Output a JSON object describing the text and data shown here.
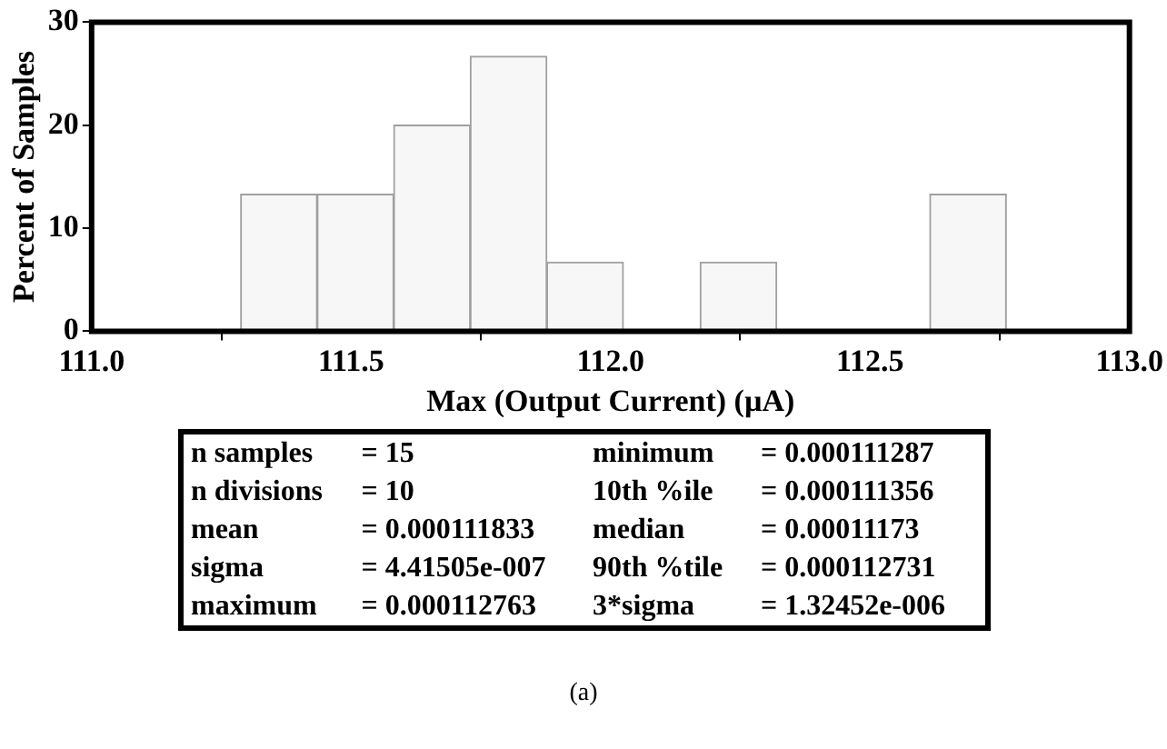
{
  "chart_data": {
    "type": "histogram",
    "xlabel": "Max (Output Current) (µA)",
    "ylabel": "Percent of Samples",
    "bins": [
      111.287,
      111.435,
      111.582,
      111.73,
      111.877,
      112.025,
      112.173,
      112.32,
      112.468,
      112.615,
      112.763
    ],
    "values": [
      13.3,
      13.3,
      20,
      26.7,
      6.7,
      0,
      6.7,
      0,
      0,
      13.3
    ],
    "color": "#f7f7f7",
    "xlim": [
      111,
      113
    ],
    "xticks": [
      {
        "value": 111,
        "label": "111.0"
      },
      {
        "value": 111.5,
        "label": "111.5"
      },
      {
        "value": 112,
        "label": "112.0"
      },
      {
        "value": 112.5,
        "label": "112.5"
      },
      {
        "value": 113,
        "label": "113.0"
      }
    ],
    "ylim": [
      0,
      30
    ],
    "yticks": [
      0,
      10,
      20,
      30
    ],
    "grid": false,
    "legend": false,
    "annotations": [
      "n samples",
      "= 15",
      "minimum",
      "= 0.000111287",
      "n divisions",
      "= 10",
      "10th %ile",
      "= 0.000111356",
      "mean",
      "= 0.000111833",
      "median",
      "= 0.00011173",
      "sigma",
      "= 4.41505e-007",
      "90th %tile",
      "= 0.000112731",
      "maximum",
      "= 0.000112763",
      "3*sigma",
      "= 1.32452e-006",
      "(a)"
    ]
  }
}
